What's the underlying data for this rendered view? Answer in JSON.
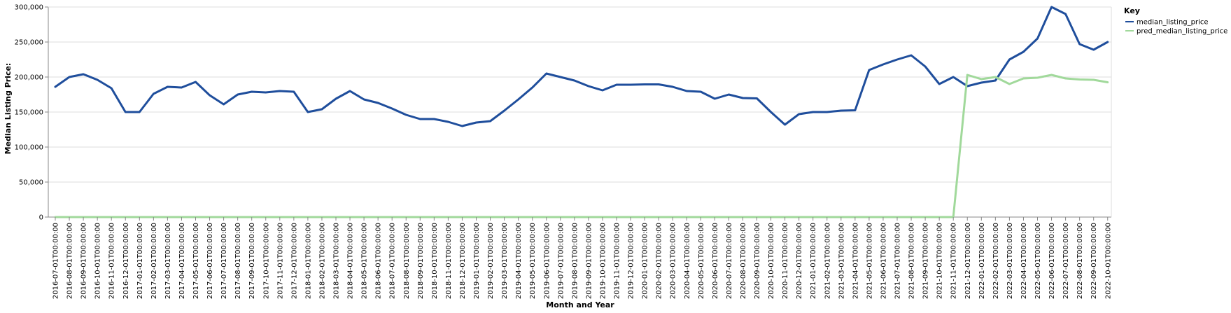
{
  "chart_data": {
    "type": "line",
    "xlabel": "Month and Year",
    "ylabel": "Median Listing Price:",
    "ylim": [
      0,
      300000
    ],
    "y_ticks": [
      "0",
      "50,000",
      "100,000",
      "150,000",
      "200,000",
      "250,000",
      "300,000"
    ],
    "grid": true,
    "legend": {
      "title": "Key",
      "placement": "top-right"
    },
    "x": [
      "2016-07-01T00:00:00",
      "2016-08-01T00:00:00",
      "2016-09-01T00:00:00",
      "2016-10-01T00:00:00",
      "2016-11-01T00:00:00",
      "2016-12-01T00:00:00",
      "2017-01-01T00:00:00",
      "2017-02-01T00:00:00",
      "2017-03-01T00:00:00",
      "2017-04-01T00:00:00",
      "2017-05-01T00:00:00",
      "2017-06-01T00:00:00",
      "2017-07-01T00:00:00",
      "2017-08-01T00:00:00",
      "2017-09-01T00:00:00",
      "2017-10-01T00:00:00",
      "2017-11-01T00:00:00",
      "2017-12-01T00:00:00",
      "2018-01-01T00:00:00",
      "2018-02-01T00:00:00",
      "2018-03-01T00:00:00",
      "2018-04-01T00:00:00",
      "2018-05-01T00:00:00",
      "2018-06-01T00:00:00",
      "2018-07-01T00:00:00",
      "2018-08-01T00:00:00",
      "2018-09-01T00:00:00",
      "2018-10-01T00:00:00",
      "2018-11-01T00:00:00",
      "2018-12-01T00:00:00",
      "2019-01-01T00:00:00",
      "2019-02-01T00:00:00",
      "2019-03-01T00:00:00",
      "2019-04-01T00:00:00",
      "2019-05-01T00:00:00",
      "2019-06-01T00:00:00",
      "2019-07-01T00:00:00",
      "2019-08-01T00:00:00",
      "2019-09-01T00:00:00",
      "2019-10-01T00:00:00",
      "2019-11-01T00:00:00",
      "2019-12-01T00:00:00",
      "2020-01-01T00:00:00",
      "2020-02-01T00:00:00",
      "2020-03-01T00:00:00",
      "2020-04-01T00:00:00",
      "2020-05-01T00:00:00",
      "2020-06-01T00:00:00",
      "2020-07-01T00:00:00",
      "2020-08-01T00:00:00",
      "2020-09-01T00:00:00",
      "2020-10-01T00:00:00",
      "2020-11-01T00:00:00",
      "2020-12-01T00:00:00",
      "2021-01-01T00:00:00",
      "2021-02-01T00:00:00",
      "2021-03-01T00:00:00",
      "2021-04-01T00:00:00",
      "2021-05-01T00:00:00",
      "2021-06-01T00:00:00",
      "2021-07-01T00:00:00",
      "2021-08-01T00:00:00",
      "2021-09-01T00:00:00",
      "2021-10-01T00:00:00",
      "2021-11-01T00:00:00",
      "2021-12-01T00:00:00",
      "2022-01-01T00:00:00",
      "2022-02-01T00:00:00",
      "2022-03-01T00:00:00",
      "2022-04-01T00:00:00",
      "2022-05-01T00:00:00",
      "2022-06-01T00:00:00",
      "2022-07-01T00:00:00",
      "2022-08-01T00:00:00",
      "2022-09-01T00:00:00",
      "2022-10-01T00:00:00"
    ],
    "series": [
      {
        "name": "median_listing_price",
        "color": "#1f4e9c",
        "values": [
          186000,
          200000,
          204000,
          196000,
          184000,
          150000,
          150000,
          176000,
          186000,
          185000,
          193000,
          174000,
          161000,
          175000,
          179000,
          178000,
          180000,
          179000,
          150000,
          154000,
          169000,
          180000,
          168000,
          163000,
          155000,
          146000,
          140000,
          140000,
          136000,
          130000,
          135000,
          137000,
          152000,
          168000,
          185000,
          205000,
          200000,
          195000,
          187000,
          181000,
          189000,
          189000,
          189500,
          189500,
          186000,
          180000,
          179000,
          169000,
          175000,
          170000,
          169500,
          150000,
          132000,
          147000,
          150000,
          150000,
          152000,
          152500,
          210000,
          218000,
          225000,
          231000,
          215000,
          190000,
          200000,
          187000,
          192000,
          195000,
          225000,
          236000,
          255000,
          300000,
          290000,
          247000,
          239000,
          250000
        ]
      },
      {
        "name": "pred_median_listing_price",
        "color": "#a1d99b",
        "values": [
          0,
          0,
          0,
          0,
          0,
          0,
          0,
          0,
          0,
          0,
          0,
          0,
          0,
          0,
          0,
          0,
          0,
          0,
          0,
          0,
          0,
          0,
          0,
          0,
          0,
          0,
          0,
          0,
          0,
          0,
          0,
          0,
          0,
          0,
          0,
          0,
          0,
          0,
          0,
          0,
          0,
          0,
          0,
          0,
          0,
          0,
          0,
          0,
          0,
          0,
          0,
          0,
          0,
          0,
          0,
          0,
          0,
          0,
          0,
          0,
          0,
          0,
          0,
          0,
          0,
          203000,
          197000,
          200000,
          190000,
          198000,
          199000,
          203000,
          198000,
          196500,
          196000,
          192500
        ]
      }
    ]
  }
}
